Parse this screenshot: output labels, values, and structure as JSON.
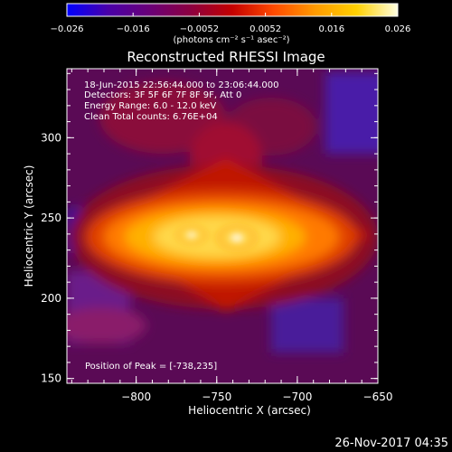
{
  "colorbar": {
    "ticks": [
      "−0.026",
      "−0.016",
      "−0.0052",
      "0.0052",
      "0.016",
      "0.026"
    ],
    "unit_label": "(photons cm⁻² s⁻¹ asec⁻²)",
    "stops": [
      "#0000ff",
      "#4a00a8",
      "#6a0078",
      "#8c0040",
      "#c40000",
      "#ff4a00",
      "#ff9a00",
      "#ffd000",
      "#ffffe0"
    ]
  },
  "title": "Reconstructed RHESSI Image",
  "info": {
    "time": "18-Jun-2015 22:56:44.000 to 23:06:44.000",
    "detectors": "Detectors: 3F 5F 6F 7F 8F 9F, Att 0",
    "energy": "Energy Range: 6.0 - 12.0 keV",
    "clean": "Clean     Total counts: 6.76E+04"
  },
  "peak_label": "Position of Peak = [-738,235]",
  "axes": {
    "xlabel": "Heliocentric X (arcsec)",
    "ylabel": "Heliocentric Y (arcsec)",
    "xticks": [
      "−800",
      "−750",
      "−700",
      "−650"
    ],
    "yticks": [
      "300",
      "250",
      "200",
      "150"
    ]
  },
  "footer_date": "26-Nov-2017 04:35",
  "image_data": {
    "xrange": [
      -843,
      -650
    ],
    "yrange": [
      147,
      343
    ],
    "peak": [
      -738,
      235
    ]
  }
}
